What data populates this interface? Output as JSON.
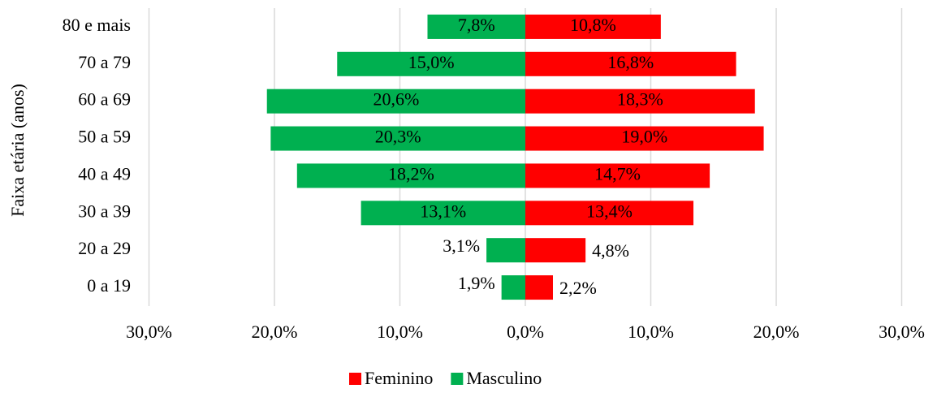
{
  "chart_data": {
    "type": "bar",
    "orientation": "horizontal",
    "ylabel": "Faixa etária (anos)",
    "categories": [
      "80 e mais",
      "70 a 79",
      "60 a 69",
      "50 a 59",
      "40 a 49",
      "30 a 39",
      "20 a 29",
      "0 a 19"
    ],
    "series": [
      {
        "name": "Feminino",
        "color": "#ff0000",
        "values": [
          10.8,
          16.8,
          18.3,
          19.0,
          14.7,
          13.4,
          4.8,
          2.2
        ],
        "value_labels": [
          "10,8%",
          "16,8%",
          "18,3%",
          "19,0%",
          "14,7%",
          "13,4%",
          "4,8%",
          "2,2%"
        ]
      },
      {
        "name": "Masculino",
        "color": "#00b050",
        "values": [
          -7.8,
          -15.0,
          -20.6,
          -20.3,
          -18.2,
          -13.1,
          -3.1,
          -1.9
        ],
        "value_labels": [
          "7,8%",
          "15,0%",
          "20,6%",
          "20,3%",
          "18,2%",
          "13,1%",
          "3,1%",
          "1,9%"
        ]
      }
    ],
    "xlim": [
      -30,
      30
    ],
    "xticks": [
      {
        "value": -30,
        "label": "30,0%"
      },
      {
        "value": -20,
        "label": "20,0%"
      },
      {
        "value": -10,
        "label": "10,0%"
      },
      {
        "value": 0,
        "label": "0,0%"
      },
      {
        "value": 10,
        "label": "10,0%"
      },
      {
        "value": 20,
        "label": "20,0%"
      },
      {
        "value": 30,
        "label": "30,0%"
      }
    ],
    "grid": true,
    "legend": "bottom"
  }
}
